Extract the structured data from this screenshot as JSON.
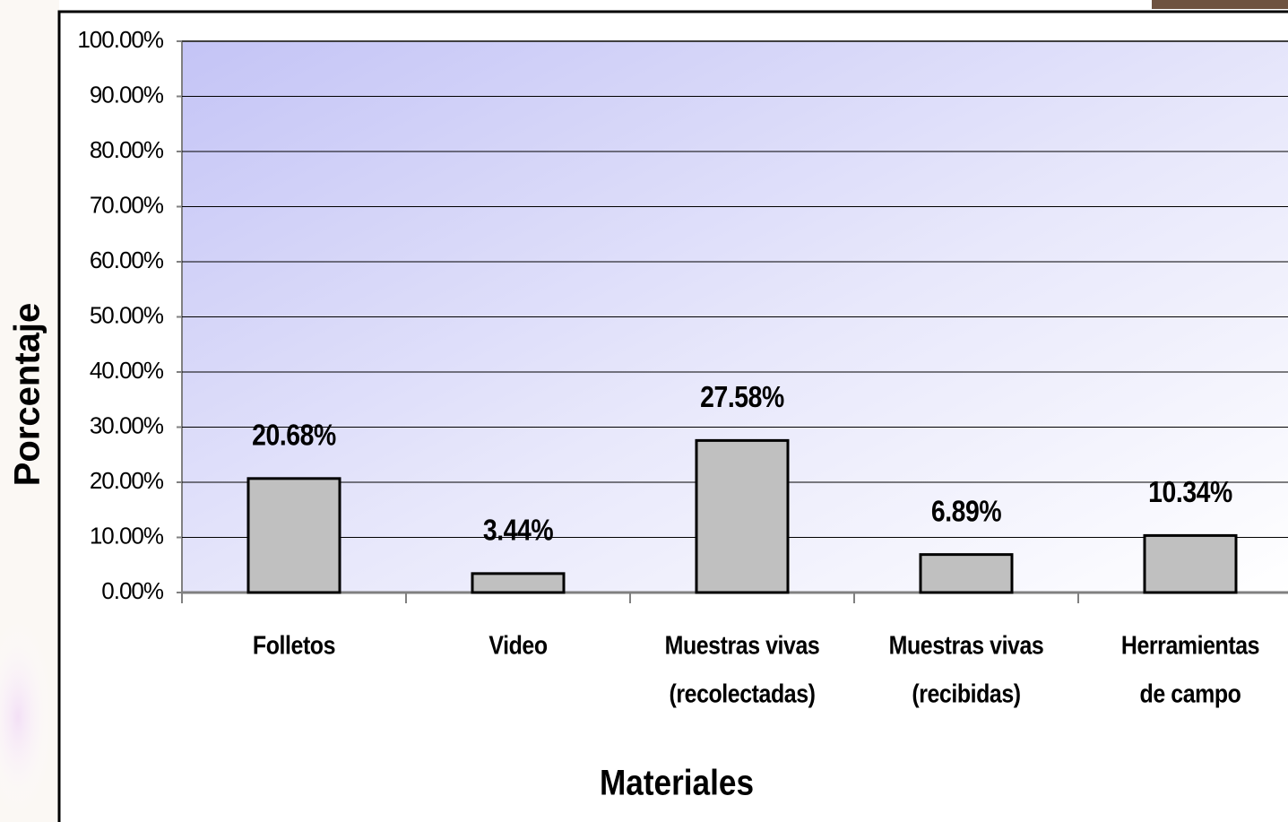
{
  "chart_data": {
    "type": "bar",
    "x_label": "Materiales",
    "y_label": "Porcentaje",
    "categories": [
      [
        "Folletos"
      ],
      [
        "Video"
      ],
      [
        "Muestras vivas",
        "(recolectadas)"
      ],
      [
        "Muestras vivas",
        "(recibidas)"
      ],
      [
        "Herramientas",
        "de campo"
      ]
    ],
    "values": [
      20.68,
      3.44,
      27.58,
      6.89,
      10.34
    ],
    "value_labels": [
      "20.68%",
      "3.44%",
      "27.58%",
      "6.89%",
      "10.34%"
    ],
    "color": "#c0c0c0",
    "ylim": [
      0,
      100
    ],
    "yticks": [
      {
        "value": 0,
        "label": "0.00%"
      },
      {
        "value": 10,
        "label": "10.00%"
      },
      {
        "value": 20,
        "label": "20.00%"
      },
      {
        "value": 30,
        "label": "30.00%"
      },
      {
        "value": 40,
        "label": "40.00%"
      },
      {
        "value": 50,
        "label": "50.00%"
      },
      {
        "value": 60,
        "label": "60.00%"
      },
      {
        "value": 70,
        "label": "70.00%"
      },
      {
        "value": 80,
        "label": "80.00%"
      },
      {
        "value": 90,
        "label": "90.00%"
      },
      {
        "value": 100,
        "label": "100.00%"
      }
    ],
    "grid": true
  }
}
